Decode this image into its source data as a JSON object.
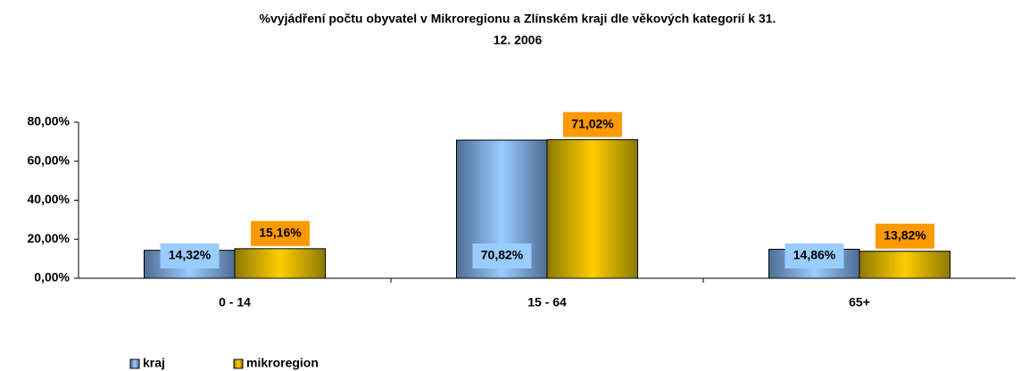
{
  "chart_data": {
    "type": "bar",
    "title": "%vyjádření počtu obyvatel v Mikroregionu a Zlínském kraji dle věkových kategorií k 31.",
    "subtitle": "12. 2006",
    "categories": [
      "0 - 14",
      "15 - 64",
      "65+"
    ],
    "series": [
      {
        "name": "kraj",
        "color": "#4f6d94",
        "values": [
          14.32,
          70.82,
          14.86
        ],
        "value_labels": [
          "14,32%",
          "70,82%",
          "14,86%"
        ]
      },
      {
        "name": "mikroregion",
        "color": "#8c7a00",
        "values": [
          15.16,
          71.02,
          13.82
        ],
        "value_labels": [
          "15,16%",
          "71,02%",
          "13,82%"
        ]
      }
    ],
    "ylim": [
      0,
      80
    ],
    "yticks": [
      {
        "value": 0,
        "label": "0,00%"
      },
      {
        "value": 20,
        "label": "20,00%"
      },
      {
        "value": 40,
        "label": "40,00%"
      },
      {
        "value": 60,
        "label": "60,00%"
      },
      {
        "value": 80,
        "label": "80,00%"
      }
    ],
    "legend": "bottom-left"
  }
}
